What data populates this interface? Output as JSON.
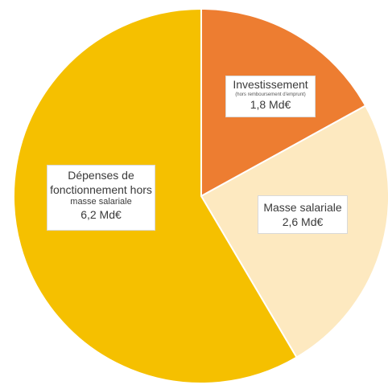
{
  "chart_data": {
    "type": "pie",
    "title": "",
    "unit": "Md€",
    "slices": [
      {
        "label": "Investissement",
        "sublabel": "(hors remboursement d'emprunt)",
        "value": 1.8,
        "value_label": "1,8 Md€",
        "color": "#ED7D31"
      },
      {
        "label": "Masse salariale",
        "value": 2.6,
        "value_label": "2,6 Md€",
        "color": "#FDE9C0"
      },
      {
        "label": "Dépenses de fonctionnement hors masse salariale",
        "value": 6.2,
        "value_label": "6,2 Md€",
        "color": "#F5C000"
      }
    ],
    "start_at": "12 o'clock",
    "direction": "clockwise",
    "legend": "none"
  },
  "labels": {
    "investissement_title": "Investissement",
    "investissement_note": "(hors remboursement d'emprunt)",
    "investissement_value": "1,8 Md€",
    "masse_title": "Masse salariale",
    "masse_value": "2,6 Md€",
    "depenses_line1": "Dépenses de",
    "depenses_line2": "fonctionnement hors",
    "depenses_line3": "masse salariale",
    "depenses_value": "6,2 Md€"
  }
}
